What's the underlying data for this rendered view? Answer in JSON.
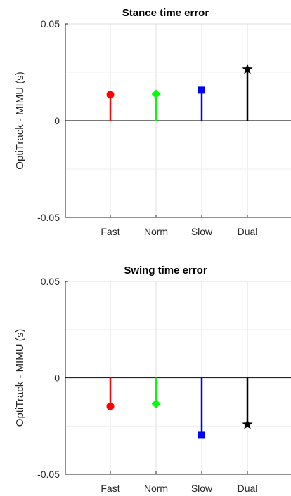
{
  "chart_data": [
    {
      "type": "stem",
      "title": "Stance time error",
      "xlabel": "",
      "ylabel": "OptiTrack - MIMU (s)",
      "categories": [
        "Fast",
        "Norm",
        "Slow",
        "Dual"
      ],
      "values": [
        0.0135,
        0.0138,
        0.0158,
        0.0265
      ],
      "markers": [
        "circle",
        "diamond",
        "square",
        "star"
      ],
      "colors": [
        "#ff0000",
        "#00ff00",
        "#0000ff",
        "#000000"
      ],
      "ylim": [
        -0.05,
        0.05
      ],
      "yticks": [
        "-0.05",
        "0",
        "0.05"
      ],
      "grid": true,
      "baseline": 0
    },
    {
      "type": "stem",
      "title": "Swing time error",
      "xlabel": "",
      "ylabel": "OptiTrack - MIMU (s)",
      "categories": [
        "Fast",
        "Norm",
        "Slow",
        "Dual"
      ],
      "values": [
        -0.0148,
        -0.0135,
        -0.0298,
        -0.0242
      ],
      "markers": [
        "circle",
        "diamond",
        "square",
        "star"
      ],
      "colors": [
        "#ff0000",
        "#00ff00",
        "#0000ff",
        "#000000"
      ],
      "ylim": [
        -0.05,
        0.05
      ],
      "yticks": [
        "-0.05",
        "0",
        "0.05"
      ],
      "grid": true,
      "baseline": 0
    }
  ]
}
